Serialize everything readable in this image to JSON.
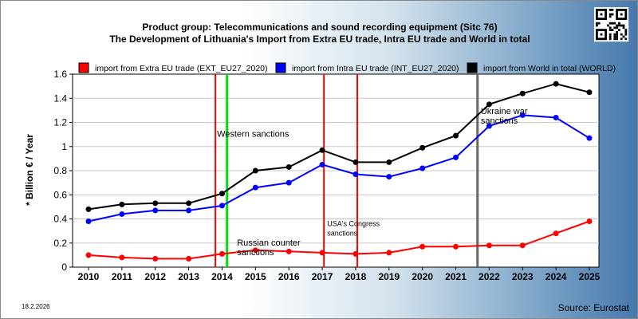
{
  "chart_data": {
    "type": "line",
    "title": "Product group: Telecommunications and sound recording equipment (Sitc 76)",
    "subtitle": "The Development of Lithuania's Import from Extra EU trade, Intra EU trade and World in total",
    "xlabel": "",
    "ylabel": "* Billion € / Year",
    "x": [
      "2010",
      "2011",
      "2012",
      "2013",
      "2014",
      "2015",
      "2016",
      "2017",
      "2018",
      "2019",
      "2020",
      "2021",
      "2022",
      "2023",
      "2024",
      "2025"
    ],
    "ylim": [
      0,
      1.6
    ],
    "yticks": [
      "0",
      "0.2",
      "0.4",
      "0.6",
      "0.8",
      "1",
      "1.2",
      "1.4",
      "1.6"
    ],
    "grid": true,
    "legend_position": "top",
    "series": [
      {
        "name": "import from Extra EU trade (EXT_EU27_2020)",
        "color": "#ff0000",
        "values": [
          0.1,
          0.08,
          0.07,
          0.07,
          0.11,
          0.14,
          0.13,
          0.12,
          0.11,
          0.12,
          0.17,
          0.17,
          0.18,
          0.18,
          0.28,
          0.38
        ]
      },
      {
        "name": "import from Intra EU trade (INT_EU27_2020)",
        "color": "#0000ff",
        "values": [
          0.38,
          0.44,
          0.47,
          0.47,
          0.51,
          0.66,
          0.7,
          0.85,
          0.77,
          0.75,
          0.82,
          0.91,
          1.17,
          1.26,
          1.24,
          1.07
        ]
      },
      {
        "name": "import from World in total (WORLD)",
        "color": "#000000",
        "values": [
          0.48,
          0.52,
          0.53,
          0.53,
          0.61,
          0.8,
          0.83,
          0.97,
          0.87,
          0.87,
          0.99,
          1.09,
          1.35,
          1.44,
          1.52,
          1.45
        ]
      }
    ],
    "event_lines": [
      {
        "x": 2013.8,
        "color": "#ff0000"
      },
      {
        "x": 2014.15,
        "color": "#00dd00"
      },
      {
        "x": 2017.05,
        "color": "#ff0000"
      },
      {
        "x": 2018.05,
        "color": "#ff0000"
      },
      {
        "x": 2021.65,
        "color": "#666666"
      }
    ],
    "annotations": [
      {
        "text": "Western sanctions",
        "x": 2013.8,
        "y": 1.08,
        "small": false
      },
      {
        "text": "Russian counter",
        "x": 2014.4,
        "y": 0.18,
        "small": false
      },
      {
        "text": "sanctions",
        "x": 2014.4,
        "y": 0.1,
        "small": false
      },
      {
        "text": "USA's Congress",
        "x": 2017.1,
        "y": 0.34,
        "small": true
      },
      {
        "text": "sanctions",
        "x": 2017.1,
        "y": 0.26,
        "small": true
      },
      {
        "text": "Ukraine war",
        "x": 2021.7,
        "y": 1.27,
        "small": false
      },
      {
        "text": "sanctions",
        "x": 2021.7,
        "y": 1.19,
        "small": false
      }
    ]
  },
  "footer": {
    "date": "18.2.2026",
    "source": "Source: Eurostat"
  }
}
